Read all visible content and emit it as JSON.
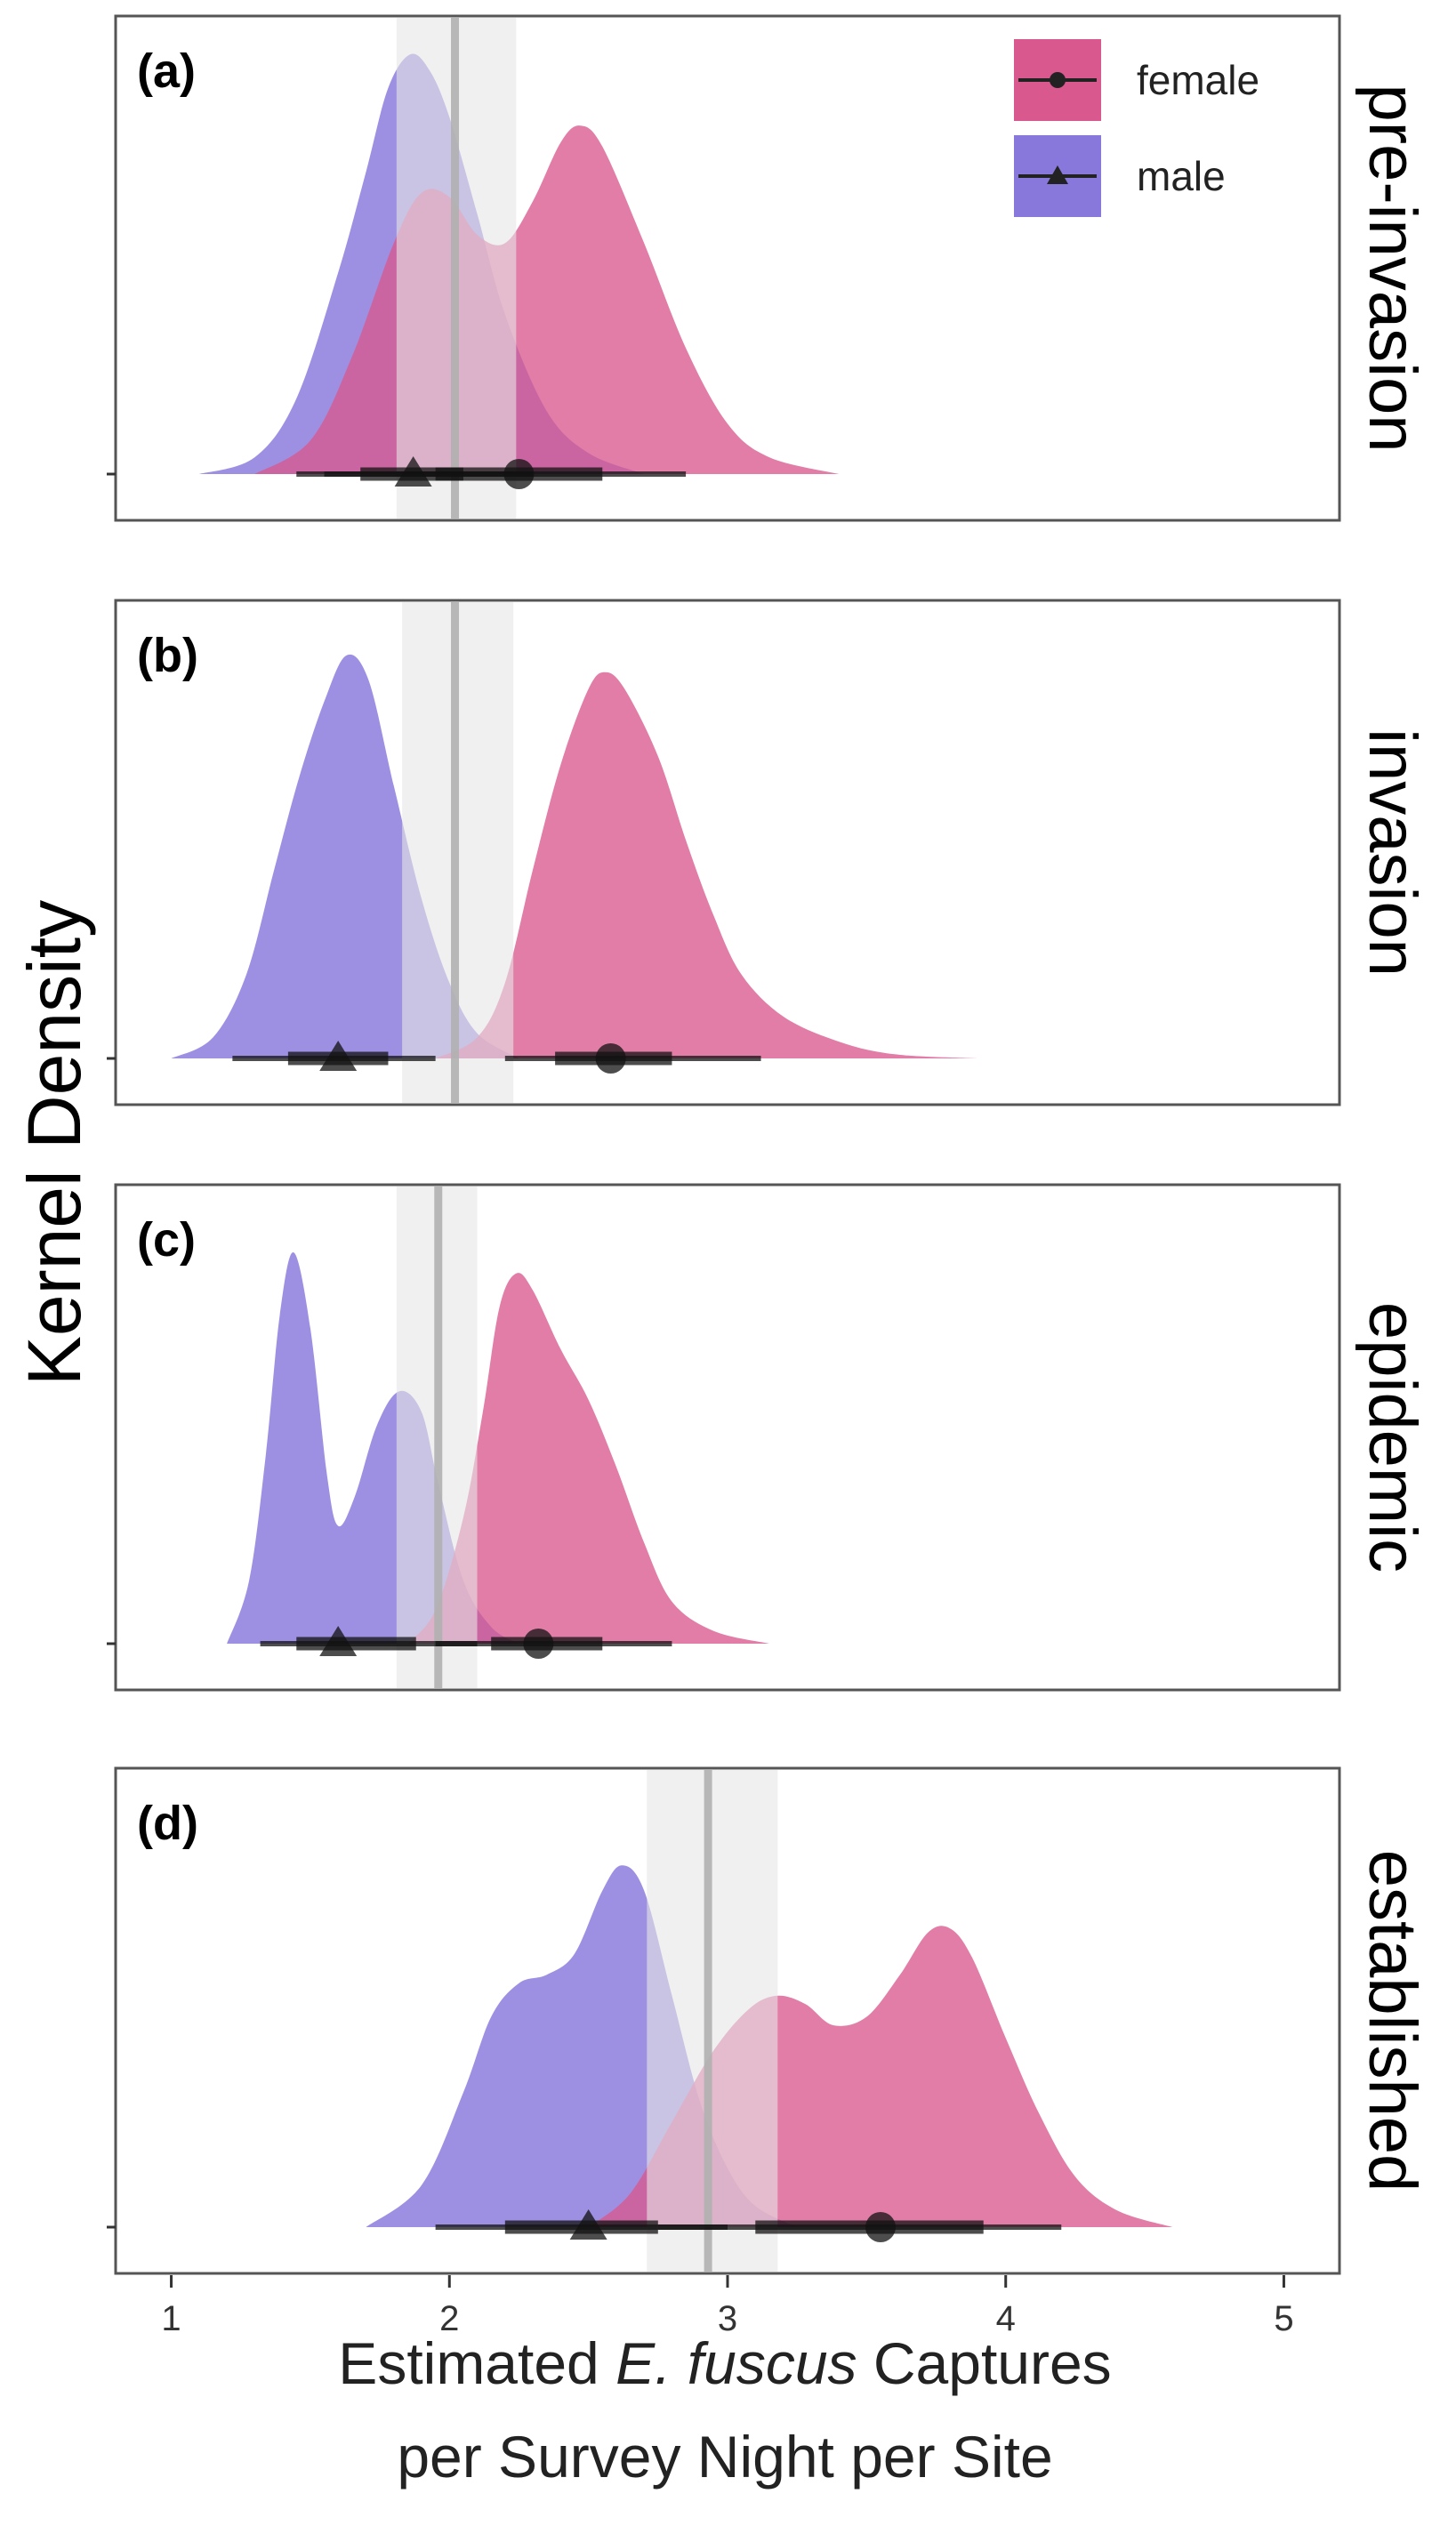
{
  "chart_data": {
    "type": "area",
    "ylabel": "Kernel Density",
    "xlabel_parts": [
      "Estimated ",
      "E. fuscus",
      " Captures"
    ],
    "xlabel_line2": "per Survey Night per Site",
    "xlim": [
      0.8,
      5.2
    ],
    "xticks": [
      1,
      2,
      3,
      4,
      5
    ],
    "legend": {
      "position": "top-right",
      "items": [
        {
          "label": "female",
          "color": "#d9588e",
          "marker": "circle"
        },
        {
          "label": "male",
          "color": "#8878dc",
          "marker": "triangle"
        }
      ]
    },
    "colors": {
      "female": "#d9588e",
      "male": "#8878dc",
      "overlap": "#b55aa8",
      "threshold_line": "#b0b0b0",
      "threshold_band": "#e6e6e6"
    },
    "panels": [
      {
        "letter": "(a)",
        "strip_label": "pre-invasion",
        "threshold": 2.02,
        "threshold_band": [
          1.81,
          2.24
        ],
        "series": [
          {
            "name": "female",
            "density": [
              [
                1.3,
                0.0
              ],
              [
                1.5,
                0.08
              ],
              [
                1.65,
                0.28
              ],
              [
                1.8,
                0.55
              ],
              [
                1.9,
                0.67
              ],
              [
                2.0,
                0.66
              ],
              [
                2.1,
                0.57
              ],
              [
                2.2,
                0.55
              ],
              [
                2.3,
                0.65
              ],
              [
                2.4,
                0.79
              ],
              [
                2.47,
                0.83
              ],
              [
                2.55,
                0.78
              ],
              [
                2.7,
                0.55
              ],
              [
                2.85,
                0.3
              ],
              [
                3.0,
                0.12
              ],
              [
                3.15,
                0.04
              ],
              [
                3.4,
                0.0
              ]
            ],
            "point": 2.25,
            "interval_inner": [
              1.95,
              2.55
            ],
            "interval_outer": [
              1.55,
              2.85
            ]
          },
          {
            "name": "male",
            "density": [
              [
                1.1,
                0.0
              ],
              [
                1.3,
                0.04
              ],
              [
                1.45,
                0.18
              ],
              [
                1.6,
                0.48
              ],
              [
                1.7,
                0.72
              ],
              [
                1.78,
                0.92
              ],
              [
                1.86,
                1.0
              ],
              [
                1.93,
                0.96
              ],
              [
                2.0,
                0.85
              ],
              [
                2.1,
                0.62
              ],
              [
                2.2,
                0.38
              ],
              [
                2.35,
                0.15
              ],
              [
                2.5,
                0.05
              ],
              [
                2.7,
                0.0
              ]
            ],
            "point": 1.87,
            "interval_inner": [
              1.68,
              2.05
            ],
            "interval_outer": [
              1.45,
              2.3
            ]
          }
        ]
      },
      {
        "letter": "(b)",
        "strip_label": "invasion",
        "threshold": 2.02,
        "threshold_band": [
          1.83,
          2.23
        ],
        "series": [
          {
            "name": "female",
            "density": [
              [
                1.95,
                0.0
              ],
              [
                2.1,
                0.05
              ],
              [
                2.2,
                0.18
              ],
              [
                2.3,
                0.45
              ],
              [
                2.4,
                0.7
              ],
              [
                2.5,
                0.88
              ],
              [
                2.56,
                0.92
              ],
              [
                2.63,
                0.88
              ],
              [
                2.75,
                0.72
              ],
              [
                2.85,
                0.52
              ],
              [
                2.95,
                0.34
              ],
              [
                3.05,
                0.2
              ],
              [
                3.2,
                0.1
              ],
              [
                3.4,
                0.04
              ],
              [
                3.6,
                0.01
              ],
              [
                3.9,
                0.0
              ]
            ],
            "point": 2.58,
            "interval_inner": [
              2.38,
              2.8
            ],
            "interval_outer": [
              2.2,
              3.12
            ]
          },
          {
            "name": "male",
            "density": [
              [
                1.0,
                0.0
              ],
              [
                1.15,
                0.05
              ],
              [
                1.27,
                0.2
              ],
              [
                1.37,
                0.45
              ],
              [
                1.46,
                0.67
              ],
              [
                1.55,
                0.85
              ],
              [
                1.63,
                0.96
              ],
              [
                1.71,
                0.9
              ],
              [
                1.8,
                0.65
              ],
              [
                1.9,
                0.38
              ],
              [
                2.0,
                0.18
              ],
              [
                2.1,
                0.06
              ],
              [
                2.25,
                0.0
              ]
            ],
            "point": 1.6,
            "interval_inner": [
              1.42,
              1.78
            ],
            "interval_outer": [
              1.22,
              1.95
            ]
          }
        ]
      },
      {
        "letter": "(c)",
        "strip_label": "epidemic",
        "threshold": 1.96,
        "threshold_band": [
          1.81,
          2.1
        ],
        "series": [
          {
            "name": "female",
            "density": [
              [
                1.85,
                0.0
              ],
              [
                1.95,
                0.08
              ],
              [
                2.05,
                0.3
              ],
              [
                2.12,
                0.55
              ],
              [
                2.18,
                0.8
              ],
              [
                2.24,
                0.88
              ],
              [
                2.3,
                0.84
              ],
              [
                2.4,
                0.7
              ],
              [
                2.5,
                0.58
              ],
              [
                2.6,
                0.42
              ],
              [
                2.7,
                0.24
              ],
              [
                2.8,
                0.1
              ],
              [
                2.95,
                0.03
              ],
              [
                3.15,
                0.0
              ]
            ],
            "point": 2.32,
            "interval_inner": [
              2.15,
              2.55
            ],
            "interval_outer": [
              1.95,
              2.8
            ]
          },
          {
            "name": "male",
            "density": [
              [
                1.2,
                0.0
              ],
              [
                1.28,
                0.15
              ],
              [
                1.34,
                0.45
              ],
              [
                1.39,
                0.78
              ],
              [
                1.44,
                0.93
              ],
              [
                1.5,
                0.75
              ],
              [
                1.56,
                0.4
              ],
              [
                1.6,
                0.28
              ],
              [
                1.66,
                0.35
              ],
              [
                1.74,
                0.52
              ],
              [
                1.82,
                0.6
              ],
              [
                1.9,
                0.55
              ],
              [
                1.96,
                0.38
              ],
              [
                2.05,
                0.15
              ],
              [
                2.15,
                0.04
              ],
              [
                2.25,
                0.0
              ]
            ],
            "point": 1.6,
            "interval_inner": [
              1.45,
              1.88
            ],
            "interval_outer": [
              1.32,
              2.1
            ]
          }
        ]
      },
      {
        "letter": "(d)",
        "strip_label": "established",
        "threshold": 2.93,
        "threshold_band": [
          2.71,
          3.18
        ],
        "series": [
          {
            "name": "female",
            "density": [
              [
                2.5,
                0.0
              ],
              [
                2.65,
                0.08
              ],
              [
                2.8,
                0.25
              ],
              [
                2.95,
                0.42
              ],
              [
                3.08,
                0.52
              ],
              [
                3.18,
                0.55
              ],
              [
                3.28,
                0.53
              ],
              [
                3.38,
                0.48
              ],
              [
                3.5,
                0.5
              ],
              [
                3.62,
                0.6
              ],
              [
                3.72,
                0.7
              ],
              [
                3.8,
                0.71
              ],
              [
                3.88,
                0.64
              ],
              [
                4.0,
                0.45
              ],
              [
                4.12,
                0.27
              ],
              [
                4.25,
                0.12
              ],
              [
                4.4,
                0.04
              ],
              [
                4.6,
                0.0
              ]
            ],
            "point": 3.55,
            "interval_inner": [
              3.1,
              3.92
            ],
            "interval_outer": [
              2.75,
              4.2
            ]
          },
          {
            "name": "male",
            "density": [
              [
                1.7,
                0.0
              ],
              [
                1.9,
                0.1
              ],
              [
                2.05,
                0.32
              ],
              [
                2.15,
                0.5
              ],
              [
                2.25,
                0.58
              ],
              [
                2.35,
                0.6
              ],
              [
                2.45,
                0.65
              ],
              [
                2.55,
                0.8
              ],
              [
                2.62,
                0.86
              ],
              [
                2.7,
                0.8
              ],
              [
                2.8,
                0.55
              ],
              [
                2.9,
                0.3
              ],
              [
                3.0,
                0.14
              ],
              [
                3.1,
                0.05
              ],
              [
                3.25,
                0.0
              ]
            ],
            "point": 2.5,
            "interval_inner": [
              2.2,
              2.75
            ],
            "interval_outer": [
              1.95,
              3.0
            ]
          }
        ]
      }
    ]
  }
}
